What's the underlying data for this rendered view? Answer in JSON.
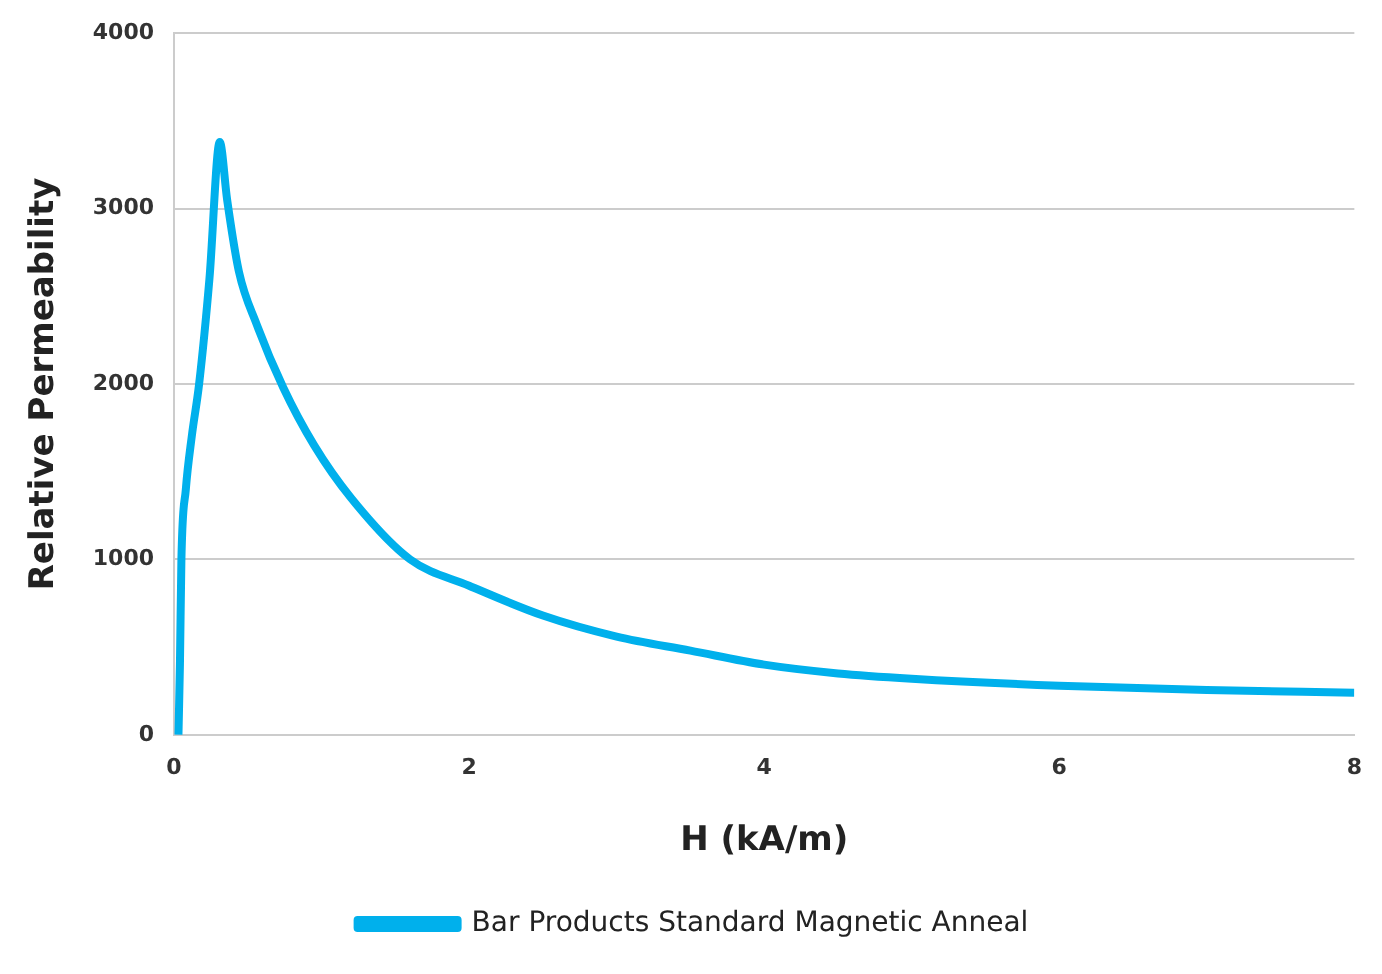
{
  "chart_data": {
    "type": "line",
    "xlabel": "H (kA/m)",
    "ylabel": "Relative Permeability",
    "series": [
      {
        "name": "Bar Products Standard Magnetic Anneal",
        "color": "#00b0ec",
        "x": [
          0.03,
          0.04,
          0.05,
          0.08,
          0.12,
          0.17,
          0.24,
          0.31,
          0.36,
          0.44,
          0.56,
          0.74,
          0.95,
          1.2,
          1.6,
          2,
          2.5,
          3,
          3.5,
          4,
          4.5,
          5,
          6,
          7,
          8
        ],
        "values": [
          0,
          400,
          1000,
          1400,
          1700,
          2000,
          2600,
          3380,
          3050,
          2640,
          2340,
          1980,
          1650,
          1350,
          1000,
          850,
          680,
          560,
          480,
          400,
          350,
          320,
          280,
          255,
          240
        ]
      }
    ],
    "xlim": [
      0,
      8
    ],
    "xticks": [
      0,
      2,
      4,
      6,
      8
    ],
    "ylim": [
      0,
      4000
    ],
    "yticks": [
      0,
      1000,
      2000,
      3000,
      4000
    ],
    "grid": "y",
    "legend": "bottom",
    "marker": "none",
    "line_style": "solid"
  }
}
